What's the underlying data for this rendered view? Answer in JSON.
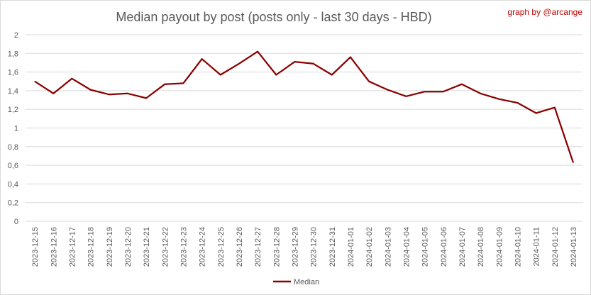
{
  "chart_data": {
    "type": "line",
    "title": "Median payout by post (posts only - last 30 days - HBD)",
    "credit": "graph by @arcange",
    "xlabel": "",
    "ylabel": "",
    "ylim": [
      0,
      2
    ],
    "yticks": [
      "0",
      "0,2",
      "0,4",
      "0,6",
      "0,8",
      "1",
      "1,2",
      "1,4",
      "1,6",
      "1,8",
      "2"
    ],
    "grid": true,
    "legend_position": "bottom",
    "categories": [
      "2023-12-15",
      "2023-12-16",
      "2023-12-17",
      "2023-12-18",
      "2023-12-19",
      "2023-12-20",
      "2023-12-21",
      "2023-12-22",
      "2023-12-23",
      "2023-12-24",
      "2023-12-25",
      "2023-12-26",
      "2023-12-27",
      "2023-12-28",
      "2023-12-29",
      "2023-12-30",
      "2023-12-31",
      "2024-01-01",
      "2024-01-02",
      "2024-01-03",
      "2024-01-04",
      "2024-01-05",
      "2024-01-06",
      "2024-01-07",
      "2024-01-08",
      "2024-01-09",
      "2024-01-10",
      "2024-01-11",
      "2024-01-12",
      "2024-01-13"
    ],
    "series": [
      {
        "name": "Median",
        "color": "#8b0000",
        "values": [
          1.5,
          1.37,
          1.53,
          1.41,
          1.36,
          1.37,
          1.32,
          1.47,
          1.48,
          1.74,
          1.57,
          1.69,
          1.82,
          1.57,
          1.71,
          1.69,
          1.57,
          1.76,
          1.5,
          1.41,
          1.34,
          1.39,
          1.39,
          1.47,
          1.37,
          1.31,
          1.27,
          1.16,
          1.22,
          0.63
        ]
      }
    ]
  }
}
